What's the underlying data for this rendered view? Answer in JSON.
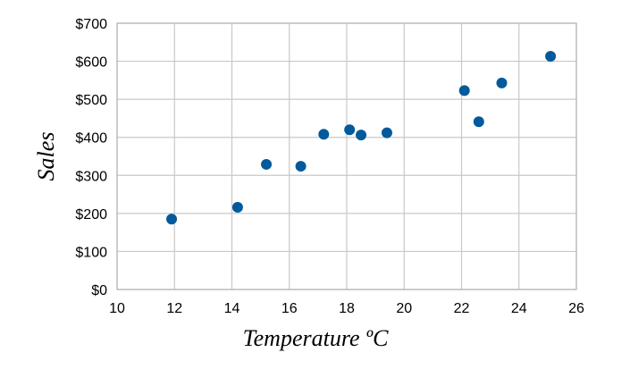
{
  "chart_data": {
    "type": "scatter",
    "title": "",
    "xlabel": "Temperature ºC",
    "ylabel": "Sales",
    "xlim": [
      10,
      26
    ],
    "ylim": [
      0,
      700
    ],
    "xticks": [
      10,
      12,
      14,
      16,
      18,
      20,
      22,
      24,
      26
    ],
    "yticks": [
      0,
      100,
      200,
      300,
      400,
      500,
      600,
      700
    ],
    "xtick_labels": [
      "10",
      "12",
      "14",
      "16",
      "18",
      "20",
      "22",
      "24",
      "26"
    ],
    "ytick_labels": [
      "$0",
      "$100",
      "$200",
      "$300",
      "$400",
      "$500",
      "$600",
      "$700"
    ],
    "grid": true,
    "legend": "none",
    "marker_color": "#005a9c",
    "series": [
      {
        "points": [
          {
            "x": 11.9,
            "y": 185
          },
          {
            "x": 14.2,
            "y": 216
          },
          {
            "x": 15.2,
            "y": 329
          },
          {
            "x": 16.4,
            "y": 324
          },
          {
            "x": 17.2,
            "y": 408
          },
          {
            "x": 18.1,
            "y": 420
          },
          {
            "x": 18.5,
            "y": 406
          },
          {
            "x": 19.4,
            "y": 412
          },
          {
            "x": 22.1,
            "y": 523
          },
          {
            "x": 22.6,
            "y": 441
          },
          {
            "x": 23.4,
            "y": 543
          },
          {
            "x": 25.1,
            "y": 613
          }
        ]
      }
    ]
  }
}
